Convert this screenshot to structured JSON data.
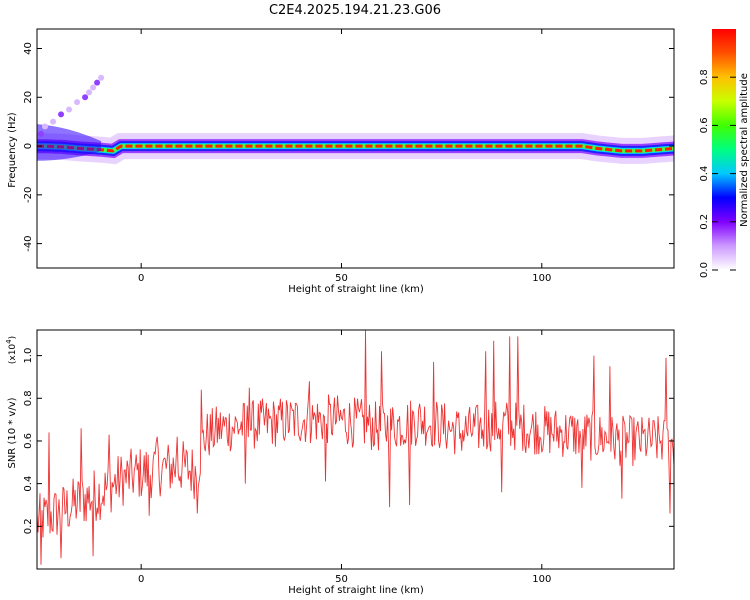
{
  "title": "C2E4.2025.194.21.23.G06",
  "chart_data": [
    {
      "type": "heatmap",
      "xlabel": "Height of straight line (km)",
      "ylabel": "Frequency (Hz)",
      "xlim": [
        -26,
        133
      ],
      "ylim": [
        -50,
        48
      ],
      "xticks": [
        0,
        50,
        100
      ],
      "xtick_labels": [
        "0",
        "50",
        "100"
      ],
      "yticks": [
        -40,
        -20,
        0,
        20,
        40
      ],
      "ytick_labels": [
        "-40",
        "-20",
        "0",
        "20",
        "40"
      ],
      "colorbar": {
        "label": "Normalized spectral amplitude",
        "range": [
          0,
          1
        ],
        "ticks": [
          0.0,
          0.2,
          0.4,
          0.6,
          0.8
        ],
        "tick_labels": [
          "0.0",
          "0.2",
          "0.4",
          "0.6",
          "0.8"
        ],
        "colormap": [
          "#ffffff",
          "#cc99ff",
          "#8000ff",
          "#0000ff",
          "#00c8ff",
          "#00ff80",
          "#40ff00",
          "#c8ff00",
          "#ffc000",
          "#ff5000",
          "#ff0000"
        ]
      },
      "ridge": {
        "x": [
          -26,
          -20,
          -15,
          -10,
          -7,
          -5,
          0,
          10,
          20,
          30,
          40,
          50,
          60,
          70,
          80,
          90,
          100,
          110,
          114,
          120,
          125,
          133
        ],
        "frequency": [
          0,
          -0.3,
          -1,
          -1.5,
          -2,
          0,
          0,
          0,
          0,
          0,
          0,
          0,
          0,
          0,
          0,
          0,
          0,
          0,
          -1,
          -2,
          -2,
          -1
        ]
      },
      "scatter_above": {
        "x": [
          -25,
          -24,
          -22,
          -20,
          -18,
          -16,
          -14,
          -13,
          -12,
          -11,
          -10
        ],
        "frequency": [
          5,
          8,
          10,
          13,
          15,
          18,
          20,
          22,
          24,
          26,
          28
        ]
      }
    },
    {
      "type": "line",
      "xlabel": "Height of straight line (km)",
      "ylabel": "SNR (10 * v/v)",
      "y_multiplier": "(x10",
      "y_multiplier_exp": "4",
      "multiplier_suffix": ")",
      "xlim": [
        -26,
        133
      ],
      "ylim": [
        0,
        1.12
      ],
      "xticks": [
        0,
        50,
        100
      ],
      "xtick_labels": [
        "0",
        "50",
        "100"
      ],
      "yticks": [
        0.2,
        0.4,
        0.6,
        0.8,
        1.0
      ],
      "ytick_labels": [
        "0.2",
        "0.4",
        "0.6",
        "0.8",
        "1.0"
      ],
      "series": [
        {
          "color": "#ee3333",
          "trend_x": [
            -26,
            -20,
            -15,
            -10,
            -5,
            0,
            5,
            10,
            14,
            15,
            16,
            20,
            30,
            40,
            50,
            60,
            70,
            80,
            90,
            100,
            110,
            120,
            130,
            133
          ],
          "trend_y": [
            0.22,
            0.27,
            0.32,
            0.36,
            0.42,
            0.45,
            0.47,
            0.48,
            0.45,
            0.58,
            0.62,
            0.66,
            0.68,
            0.7,
            0.7,
            0.66,
            0.7,
            0.64,
            0.68,
            0.65,
            0.63,
            0.6,
            0.6,
            0.58
          ],
          "peaks_x": [
            -23,
            -15,
            -8,
            4,
            9,
            15,
            27,
            42,
            56,
            60,
            73,
            86,
            88,
            92,
            94,
            113,
            117,
            131,
            132
          ],
          "peaks_y": [
            0.64,
            0.66,
            0.63,
            0.62,
            0.62,
            0.84,
            0.85,
            0.88,
            1.12,
            1.02,
            0.97,
            1.02,
            1.07,
            1.09,
            1.09,
            1.0,
            0.95,
            0.99,
            0.98
          ],
          "troughs_x": [
            -25,
            -20,
            -12,
            2,
            14,
            26,
            46,
            62,
            67,
            90,
            110,
            120,
            132
          ],
          "troughs_y": [
            0.02,
            0.05,
            0.06,
            0.25,
            0.26,
            0.4,
            0.41,
            0.29,
            0.3,
            0.36,
            0.38,
            0.33,
            0.26
          ]
        }
      ]
    }
  ]
}
